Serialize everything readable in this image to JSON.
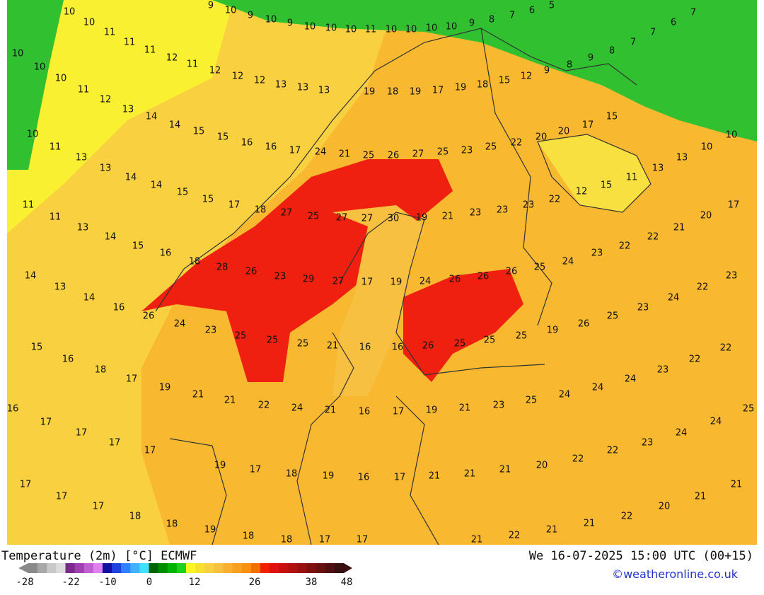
{
  "header": {
    "title": "Temperature (2m) [°C] ECMWF",
    "datetime": "We 16-07-2025 15:00 UTC (00+15)",
    "credit": "©weatheronline.co.uk"
  },
  "colorbar": {
    "ticks": [
      -28,
      -22,
      -10,
      0,
      12,
      26,
      38,
      48
    ],
    "colors": [
      "#8a8a8a",
      "#a8a8a8",
      "#c8c8c8",
      "#dcdcdc",
      "#7a2a8a",
      "#a040b0",
      "#c060d0",
      "#e080f0",
      "#1010a0",
      "#2040e0",
      "#3080ff",
      "#40b0ff",
      "#40e0ff",
      "#006400",
      "#008c00",
      "#00b400",
      "#20d020",
      "#f8f820",
      "#f8e030",
      "#f8d040",
      "#f8c040",
      "#f8b030",
      "#f8a020",
      "#f89010",
      "#f07000",
      "#f02000",
      "#e01010",
      "#c81010",
      "#b01010",
      "#981010",
      "#801010",
      "#681010",
      "#501010",
      "#381010"
    ]
  },
  "map_labels": [
    10,
    9,
    10,
    9,
    10,
    9,
    10,
    10,
    10,
    11,
    10,
    10,
    10,
    10,
    9,
    8,
    7,
    6,
    5,
    10,
    11,
    11,
    11,
    12,
    11,
    12,
    12,
    12,
    13,
    13,
    13,
    19,
    18,
    19,
    17,
    19,
    18,
    15,
    12,
    9,
    8,
    9,
    8,
    7,
    7,
    6,
    7,
    10,
    10,
    10,
    11,
    12,
    13,
    14,
    14,
    15,
    15,
    16,
    16,
    17,
    24,
    21,
    25,
    26,
    27,
    25,
    23,
    25,
    22,
    20,
    20,
    17,
    15,
    13,
    10,
    10,
    13,
    11,
    15,
    12,
    10,
    11,
    13,
    13,
    14,
    14,
    15,
    15,
    17,
    18,
    27,
    25,
    27,
    27,
    30,
    19,
    21,
    23,
    23,
    23,
    22,
    17,
    20,
    21,
    22,
    22,
    23,
    24,
    25,
    26,
    26,
    26,
    24,
    19,
    17,
    27,
    29,
    23,
    26,
    28,
    18,
    16,
    15,
    14,
    13,
    11,
    11,
    14,
    13,
    14,
    16,
    26,
    24,
    23,
    25,
    25,
    25,
    21,
    16,
    16,
    26,
    25,
    25,
    25,
    19,
    26,
    25,
    23,
    24,
    22,
    23,
    15,
    16,
    18,
    17,
    19,
    21,
    21,
    22,
    24,
    21,
    16,
    17,
    19,
    21,
    23,
    25,
    24,
    24,
    24,
    23,
    22,
    22,
    25,
    16,
    17,
    17,
    17,
    17,
    19,
    17,
    18,
    19,
    16,
    17,
    21,
    21,
    21,
    20,
    22,
    22,
    23,
    24,
    24,
    17,
    17,
    17,
    18,
    18,
    19,
    18,
    18,
    17,
    17,
    21,
    22,
    21,
    21,
    22,
    20,
    21,
    21
  ]
}
